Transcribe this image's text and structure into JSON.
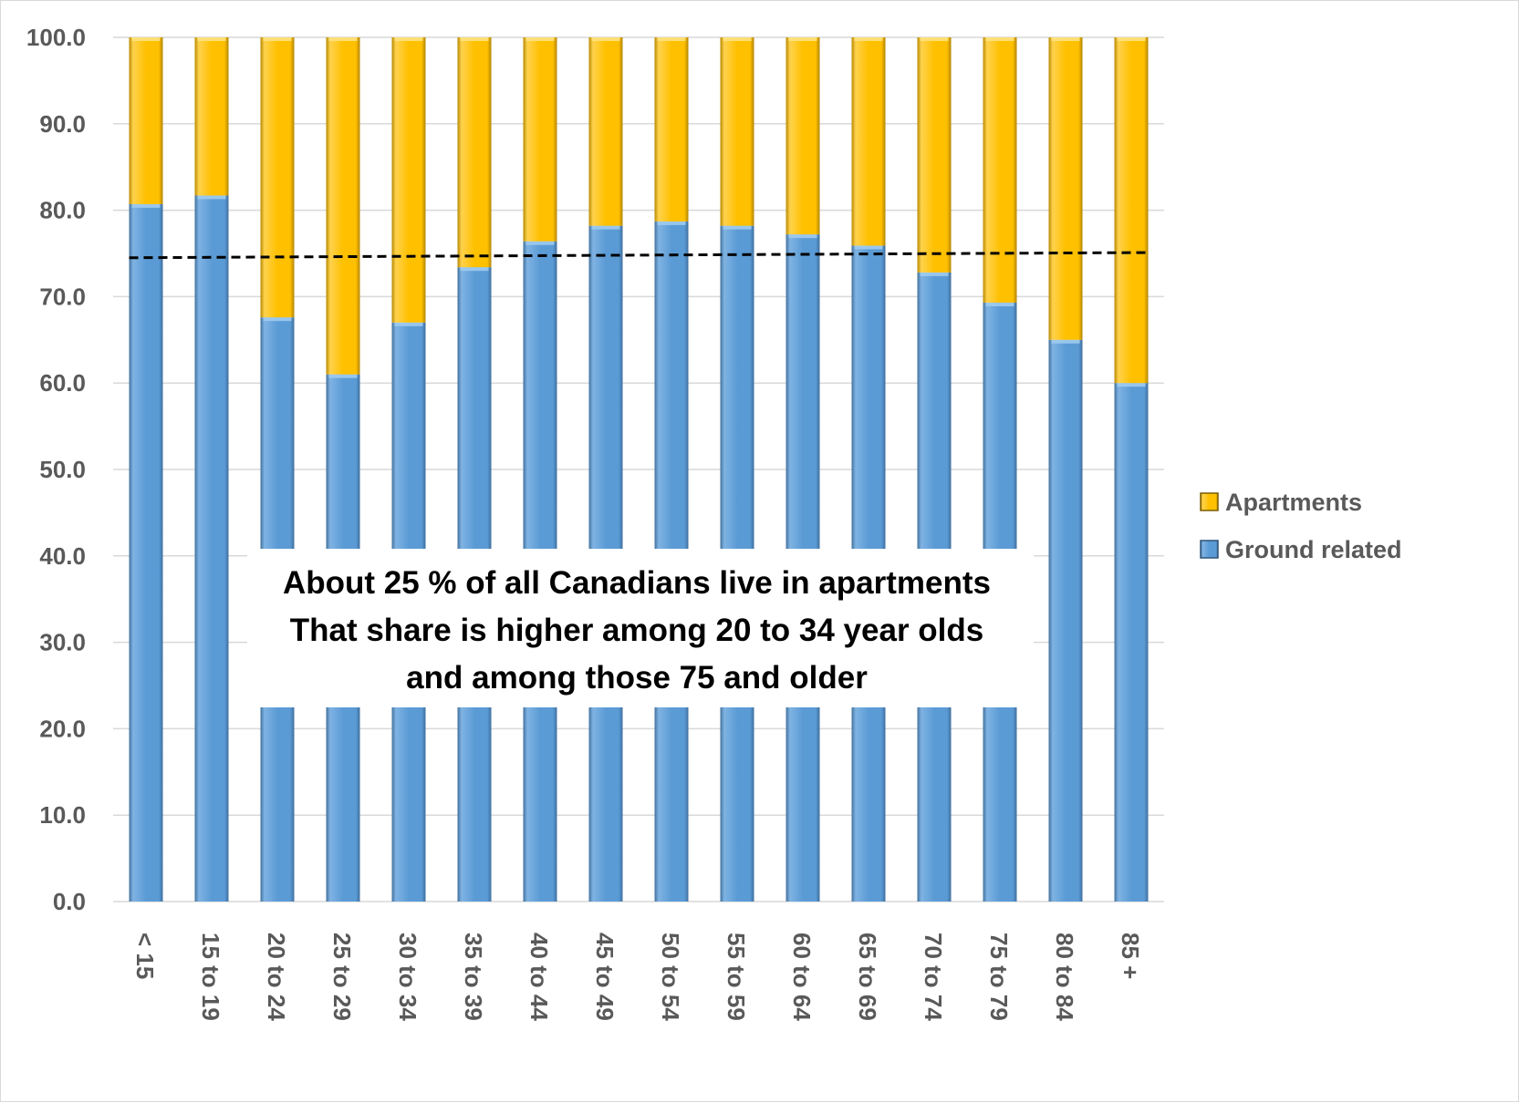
{
  "chart_data": {
    "type": "bar",
    "stacked": true,
    "categories": [
      "< 15",
      "15 to 19",
      "20 to 24",
      "25 to 29",
      "30 to 34",
      "35 to 39",
      "40 to 44",
      "45 to 49",
      "50 to 54",
      "55 to 59",
      "60 to 64",
      "65 to 69",
      "70 to 74",
      "75 to 79",
      "80 to 84",
      "85 +"
    ],
    "series": [
      {
        "name": "Ground related",
        "color": "#5B9BD5",
        "values": [
          80.7,
          81.7,
          67.6,
          61.0,
          67.0,
          73.4,
          76.4,
          78.2,
          78.7,
          78.2,
          77.2,
          75.9,
          72.8,
          69.3,
          65.0,
          60.0
        ]
      },
      {
        "name": "Apartments",
        "color": "#FFC000",
        "values": [
          19.3,
          18.3,
          32.4,
          39.0,
          33.0,
          26.6,
          23.6,
          21.8,
          21.3,
          21.8,
          22.8,
          24.1,
          27.2,
          30.7,
          35.0,
          40.0
        ]
      }
    ],
    "trendline": {
      "style": "dashed",
      "color": "#000000",
      "start": 74.5,
      "end": 75.1
    },
    "ylim": [
      0,
      100
    ],
    "yticks": [
      "0.0",
      "10.0",
      "20.0",
      "30.0",
      "40.0",
      "50.0",
      "60.0",
      "70.0",
      "80.0",
      "90.0",
      "100.0"
    ],
    "grid": true,
    "legend": {
      "position": "right",
      "order": [
        "Apartments",
        "Ground related"
      ]
    },
    "annotation": {
      "lines": [
        "About 25 % of all Canadians live in apartments",
        "That share is higher among 20 to 34 year olds",
        "and among those 75 and older"
      ]
    },
    "title": "",
    "xlabel": "",
    "ylabel": ""
  }
}
